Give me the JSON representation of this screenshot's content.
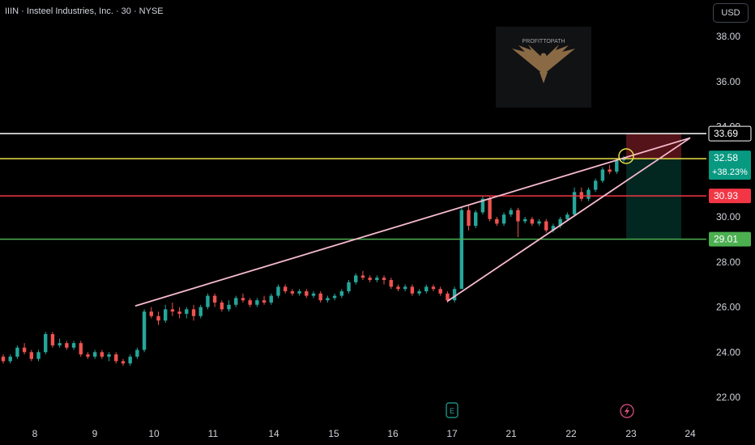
{
  "header": {
    "title": "IIIN · Insteel Industries, Inc. · 30 · NYSE",
    "currency": "USD"
  },
  "watermark": {
    "text": "PROFITTOPATH",
    "icon": "eagle-logo-icon"
  },
  "markers": {
    "earnings_label": "E",
    "dividend_icon": "lightning-icon"
  },
  "colors": {
    "background": "#000000",
    "up": "#26a69a",
    "down": "#ef5350",
    "trend_line": "#f8bbd0",
    "level_resistance": "#ffffff",
    "level_entry": "#e8e04a",
    "level_stop": "#f23645",
    "level_target": "#4caf50",
    "price_label_current": "#089981"
  },
  "chart_data": {
    "type": "candlestick",
    "ylim": [
      21.0,
      39.0
    ],
    "yticks": [
      "38.00",
      "36.00",
      "34.00",
      "30.00",
      "28.00",
      "26.00",
      "24.00",
      "22.00"
    ],
    "xticks": [
      "8",
      "9",
      "10",
      "11",
      "14",
      "15",
      "16",
      "17",
      "21",
      "22",
      "23",
      "24"
    ],
    "horizontal_levels": [
      {
        "price": 33.69,
        "label": "33.69",
        "role": "resistance"
      },
      {
        "price": 32.58,
        "label": "32.58",
        "role": "entry"
      },
      {
        "price": 30.93,
        "label": "30.93",
        "role": "stop"
      },
      {
        "price": 29.01,
        "label": "29.01",
        "role": "target"
      }
    ],
    "current_change": "+38.23%",
    "trend_lines": [
      {
        "from": {
          "date": "9",
          "price": 26.05
        },
        "to": {
          "date": "23",
          "price": 33.5
        }
      },
      {
        "from": {
          "date": "17",
          "price": 26.25
        },
        "to": {
          "date": "23",
          "price": 33.5
        }
      }
    ],
    "candles": [
      [
        23.8,
        23.6,
        23.9,
        23.5
      ],
      [
        23.6,
        23.8,
        23.9,
        23.5
      ],
      [
        23.8,
        24.2,
        24.3,
        23.7
      ],
      [
        24.2,
        24.0,
        24.4,
        23.9
      ],
      [
        24.0,
        23.7,
        24.1,
        23.6
      ],
      [
        23.7,
        24.0,
        24.1,
        23.6
      ],
      [
        24.0,
        24.8,
        24.9,
        23.9
      ],
      [
        24.8,
        24.3,
        24.9,
        24.2
      ],
      [
        24.3,
        24.4,
        24.6,
        24.2
      ],
      [
        24.4,
        24.2,
        24.5,
        24.1
      ],
      [
        24.2,
        24.4,
        24.5,
        24.1
      ],
      [
        24.4,
        23.9,
        24.5,
        23.8
      ],
      [
        23.9,
        23.8,
        24.0,
        23.7
      ],
      [
        23.8,
        24.0,
        24.1,
        23.7
      ],
      [
        24.0,
        23.8,
        24.1,
        23.7
      ],
      [
        23.8,
        23.9,
        24.0,
        23.6
      ],
      [
        23.9,
        23.6,
        24.0,
        23.5
      ],
      [
        23.6,
        23.5,
        23.7,
        23.4
      ],
      [
        23.5,
        23.8,
        23.9,
        23.4
      ],
      [
        23.8,
        24.1,
        24.2,
        23.7
      ],
      [
        24.1,
        25.8,
        25.9,
        24.0
      ],
      [
        25.8,
        25.6,
        26.0,
        25.5
      ],
      [
        25.6,
        25.4,
        25.8,
        25.2
      ],
      [
        25.4,
        25.9,
        26.1,
        25.3
      ],
      [
        25.9,
        25.8,
        26.2,
        25.6
      ],
      [
        25.8,
        25.7,
        26.0,
        25.5
      ],
      [
        25.7,
        25.9,
        26.0,
        25.5
      ],
      [
        25.9,
        25.6,
        26.1,
        25.4
      ],
      [
        25.6,
        26.0,
        26.1,
        25.5
      ],
      [
        26.0,
        26.5,
        26.6,
        25.9
      ],
      [
        26.5,
        26.2,
        26.6,
        26.0
      ],
      [
        26.2,
        25.9,
        26.3,
        25.8
      ],
      [
        25.9,
        26.1,
        26.3,
        25.8
      ],
      [
        26.1,
        26.4,
        26.5,
        26.0
      ],
      [
        26.4,
        26.3,
        26.6,
        26.2
      ],
      [
        26.3,
        26.1,
        26.4,
        26.0
      ],
      [
        26.1,
        26.3,
        26.4,
        26.0
      ],
      [
        26.3,
        26.2,
        26.5,
        26.1
      ],
      [
        26.2,
        26.5,
        26.6,
        26.1
      ],
      [
        26.5,
        26.9,
        27.0,
        26.4
      ],
      [
        26.9,
        26.7,
        27.0,
        26.6
      ],
      [
        26.7,
        26.6,
        26.8,
        26.5
      ],
      [
        26.6,
        26.7,
        26.8,
        26.5
      ],
      [
        26.7,
        26.5,
        26.8,
        26.4
      ],
      [
        26.5,
        26.6,
        26.7,
        26.4
      ],
      [
        26.6,
        26.3,
        26.7,
        26.2
      ],
      [
        26.3,
        26.4,
        26.5,
        26.2
      ],
      [
        26.4,
        26.5,
        26.6,
        26.3
      ],
      [
        26.5,
        26.7,
        26.8,
        26.4
      ],
      [
        26.7,
        27.1,
        27.2,
        26.6
      ],
      [
        27.1,
        27.4,
        27.5,
        27.0
      ],
      [
        27.4,
        27.3,
        27.6,
        27.2
      ],
      [
        27.3,
        27.2,
        27.4,
        27.1
      ],
      [
        27.2,
        27.3,
        27.4,
        27.1
      ],
      [
        27.3,
        27.2,
        27.4,
        27.0
      ],
      [
        27.2,
        26.9,
        27.3,
        26.8
      ],
      [
        26.9,
        26.8,
        27.0,
        26.7
      ],
      [
        26.8,
        26.9,
        27.0,
        26.7
      ],
      [
        26.9,
        26.6,
        27.0,
        26.5
      ],
      [
        26.6,
        26.7,
        26.8,
        26.5
      ],
      [
        26.7,
        26.9,
        27.0,
        26.6
      ],
      [
        26.9,
        26.8,
        27.0,
        26.7
      ],
      [
        26.8,
        26.6,
        26.9,
        26.5
      ],
      [
        26.6,
        26.3,
        26.7,
        26.2
      ],
      [
        26.3,
        26.8,
        26.9,
        26.2
      ],
      [
        26.8,
        30.3,
        30.4,
        28.8
      ],
      [
        30.3,
        29.6,
        30.5,
        29.4
      ],
      [
        29.6,
        30.2,
        30.3,
        29.5
      ],
      [
        30.2,
        30.8,
        30.9,
        30.1
      ],
      [
        30.8,
        29.9,
        30.9,
        29.8
      ],
      [
        29.9,
        29.7,
        30.0,
        29.6
      ],
      [
        29.7,
        30.1,
        30.2,
        29.6
      ],
      [
        30.1,
        30.3,
        30.4,
        30.0
      ],
      [
        30.3,
        29.8,
        30.4,
        29.1
      ],
      [
        29.8,
        29.9,
        30.0,
        29.7
      ],
      [
        29.9,
        29.7,
        30.0,
        29.6
      ],
      [
        29.7,
        29.8,
        29.9,
        29.6
      ],
      [
        29.8,
        29.4,
        29.9,
        29.3
      ],
      [
        29.4,
        29.6,
        29.7,
        29.3
      ],
      [
        29.6,
        29.9,
        30.0,
        29.5
      ],
      [
        29.9,
        30.1,
        30.2,
        29.8
      ],
      [
        30.1,
        31.1,
        31.3,
        30.0
      ],
      [
        31.1,
        30.8,
        31.3,
        30.7
      ],
      [
        30.8,
        31.2,
        31.3,
        30.7
      ],
      [
        31.2,
        31.6,
        31.7,
        31.1
      ],
      [
        31.6,
        32.1,
        32.2,
        31.5
      ],
      [
        32.1,
        32.0,
        32.3,
        31.9
      ],
      [
        32.0,
        32.5,
        32.6,
        31.9
      ],
      [
        32.5,
        32.58,
        32.7,
        32.4
      ]
    ]
  }
}
